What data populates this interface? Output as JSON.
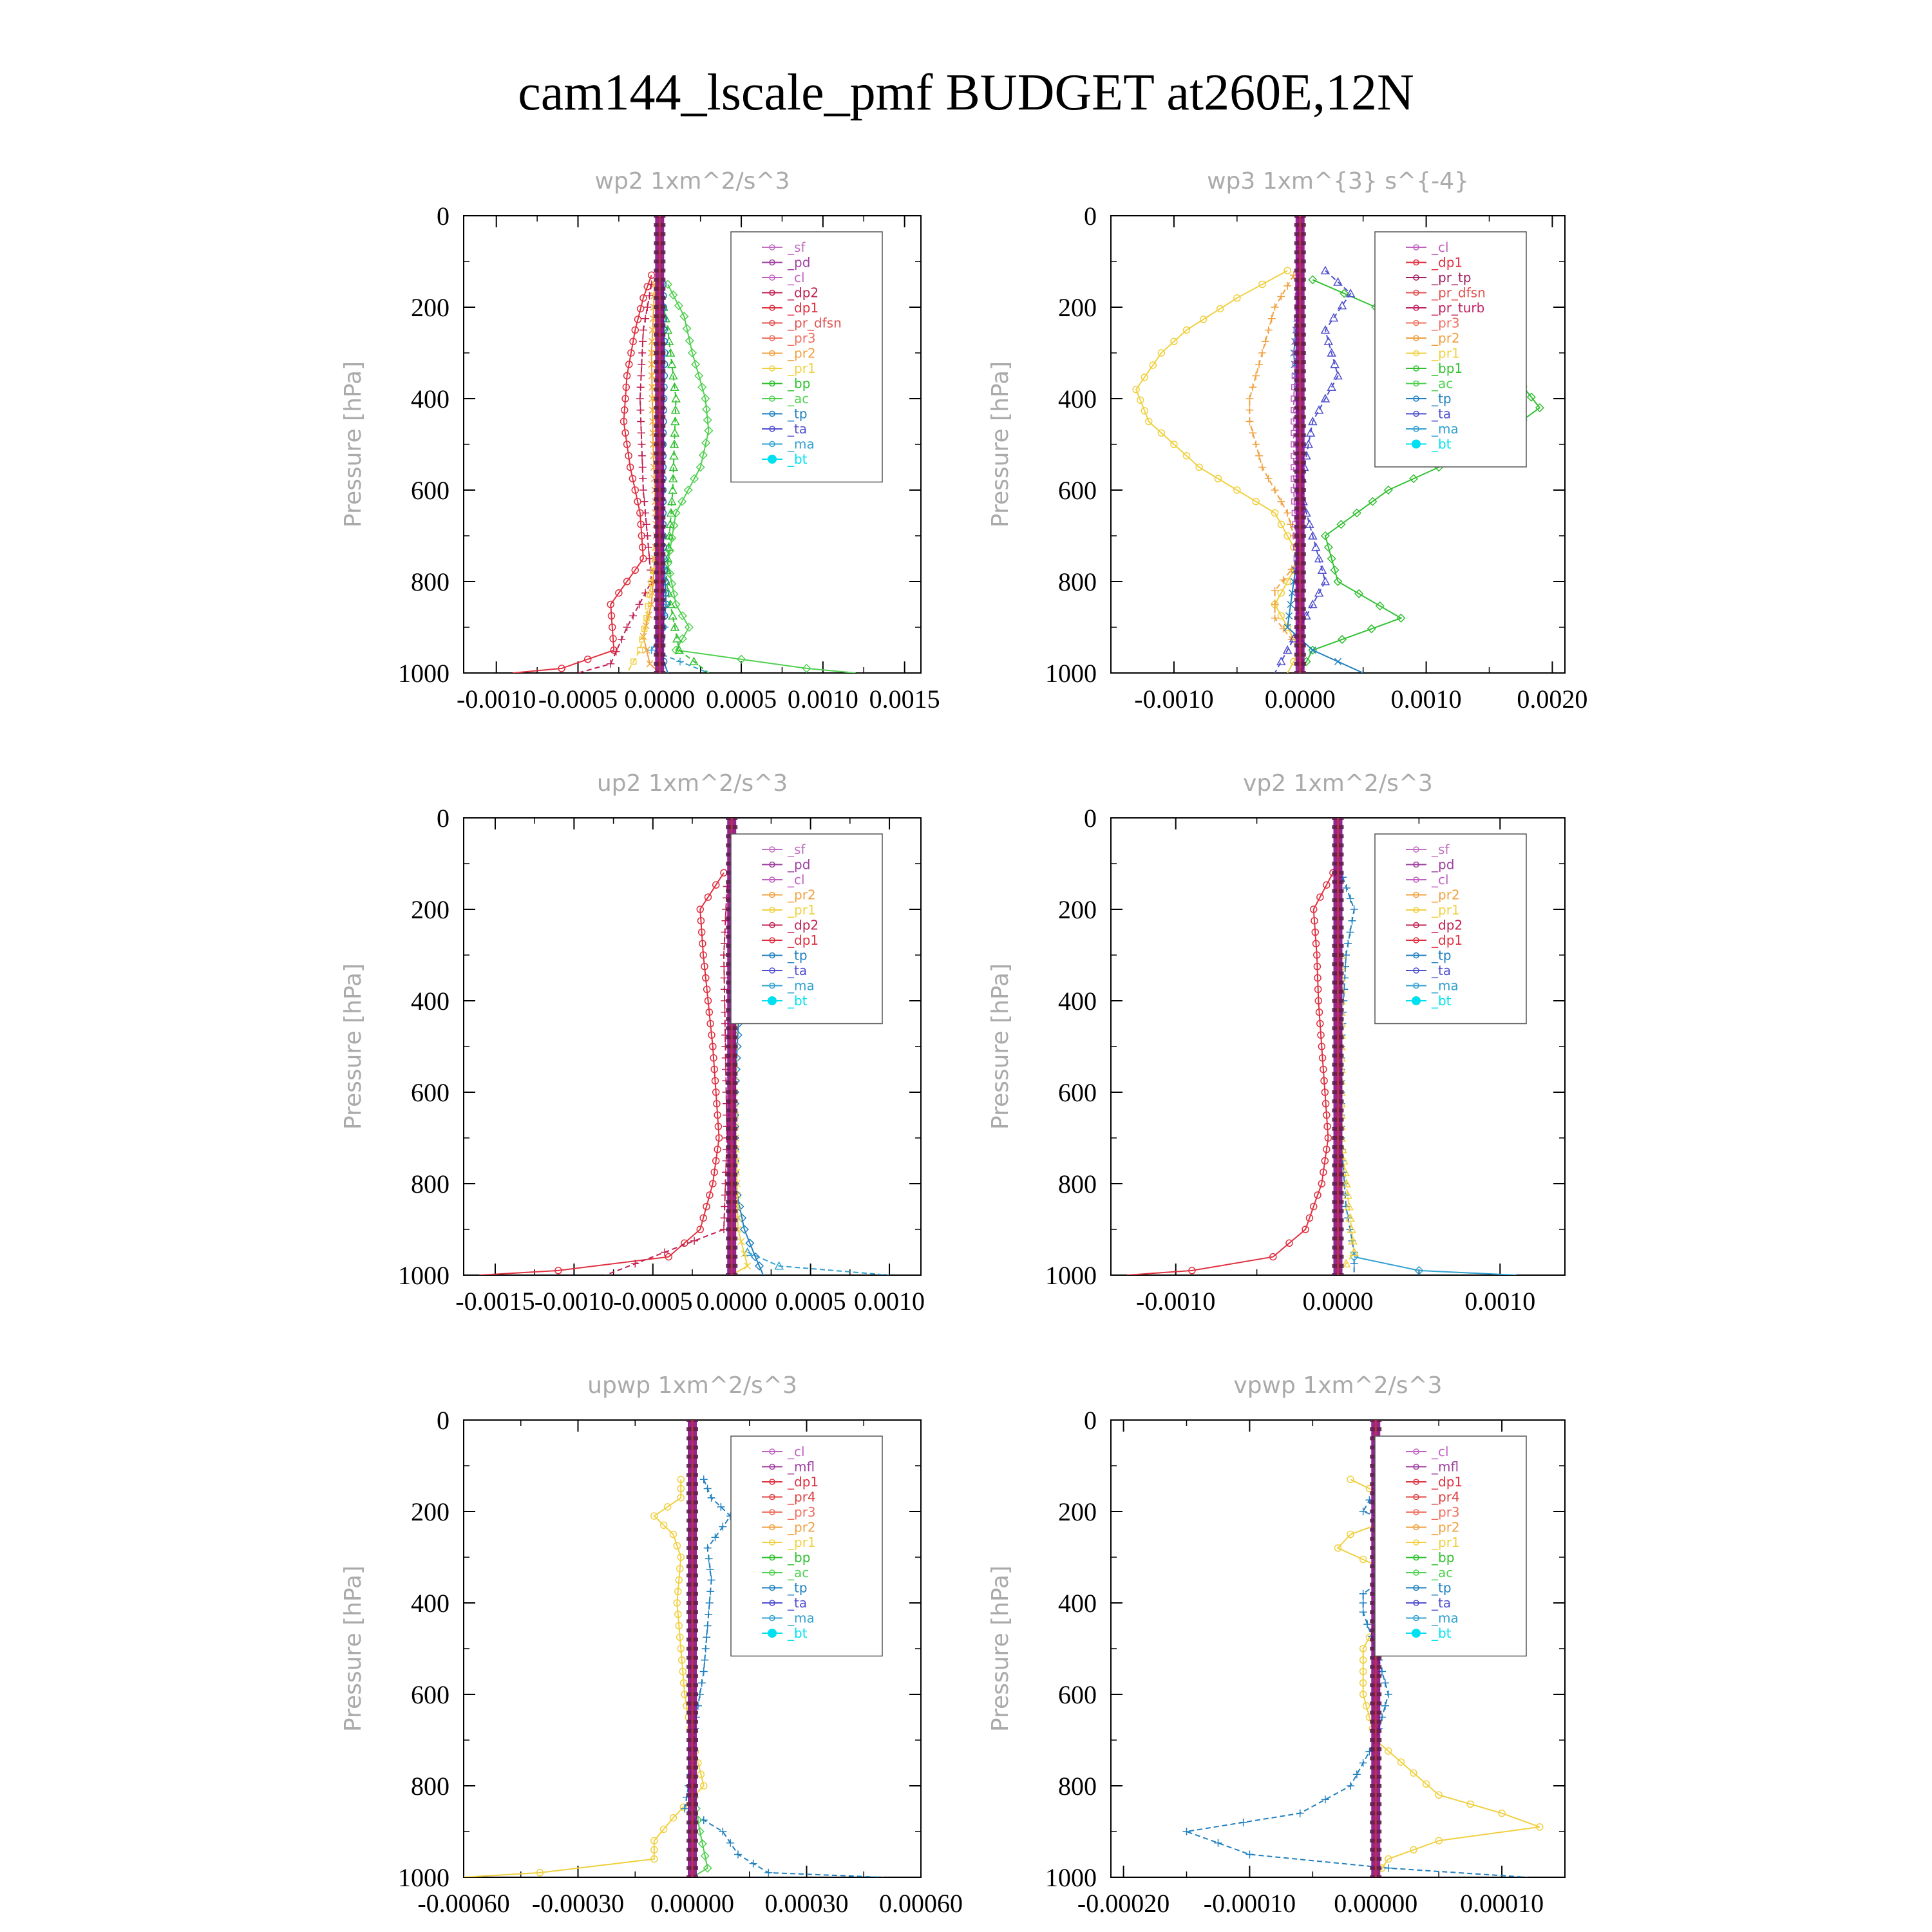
{
  "page": {
    "title": "cam144_lscale_pmf  BUDGET at260E,12N"
  },
  "colors": {
    "_sf": "#c070c0",
    "_pd": "#a040a0",
    "_cl": "#c060c0",
    "_dp2": "#c02050",
    "_dp1": "#e03040",
    "_pr_dfsn": "#e05050",
    "_pr_tp": "#a02060",
    "_pr_turb": "#c02060",
    "_pr4": "#e04040",
    "_pr3": "#f07060",
    "_pr2": "#f0a040",
    "_pr1": "#f0d040",
    "_bp": "#30c030",
    "_bp1": "#30c030",
    "_ac": "#50d050",
    "_tp": "#2080c0",
    "_ta": "#5050d0",
    "_ma": "#30a0d0",
    "_bt": "#00e0f0",
    "_mfl": "#a040a0",
    "axis": "#000000",
    "subtitle": "#aaaaaa",
    "zero_line": "#800080"
  },
  "chart_data": [
    {
      "type": "line",
      "title": "wp2   1xm^2/s^3",
      "ylabel": "Pressure [hPa]",
      "ylim": [
        1000,
        0
      ],
      "xlim": [
        -0.0012,
        0.0016
      ],
      "xticks": [
        -0.001,
        -0.0005,
        0.0,
        0.0005,
        0.001,
        0.0015
      ],
      "xtick_labels": [
        "-0.0010",
        "-0.0005",
        "0.0000",
        "0.0005",
        "0.0010",
        "0.0015"
      ],
      "yticks": [
        0,
        200,
        400,
        600,
        800,
        1000
      ],
      "ytick_labels": [
        "0",
        "200",
        "400",
        "600",
        "800",
        "1000"
      ],
      "legend": [
        "_sf",
        "_pd",
        "_cl",
        "_dp2",
        "_dp1",
        "_pr_dfsn",
        "_pr3",
        "_pr2",
        "_pr1",
        "_bp",
        "_ac",
        "_tp",
        "_ta",
        "_ma",
        "_bt"
      ],
      "series": [
        {
          "key": "_dp1",
          "y": [
            130,
            180,
            250,
            350,
            450,
            550,
            650,
            750,
            850,
            950,
            990,
            1000
          ],
          "x": [
            -5e-05,
            -0.0001,
            -0.00015,
            -0.0002,
            -0.00022,
            -0.00018,
            -0.00012,
            -0.0001,
            -0.0003,
            -0.00028,
            -0.0006,
            -0.0009
          ]
        },
        {
          "key": "_dp2",
          "y": [
            150,
            250,
            400,
            600,
            800,
            900,
            980,
            1000
          ],
          "x": [
            -5e-05,
            -0.0001,
            -0.00012,
            -0.0001,
            -5e-05,
            -0.0002,
            -0.0003,
            -0.0005
          ]
        },
        {
          "key": "_ac",
          "y": [
            150,
            220,
            300,
            400,
            470,
            550,
            650,
            760,
            850,
            900,
            950,
            990,
            1000
          ],
          "x": [
            5e-05,
            0.00015,
            0.0002,
            0.00028,
            0.0003,
            0.00025,
            0.0001,
            5e-05,
            0.0001,
            0.00018,
            0.0001,
            0.0009,
            0.0012
          ]
        },
        {
          "key": "_bp",
          "y": [
            150,
            250,
            400,
            600,
            800,
            950,
            1000
          ],
          "x": [
            0.0,
            5e-05,
            0.0001,
            8e-05,
            4e-05,
            0.00012,
            0.0003
          ]
        },
        {
          "key": "_pr2",
          "y": [
            150,
            300,
            500,
            700,
            850,
            920,
            980,
            1000
          ],
          "x": [
            -3e-05,
            -5e-05,
            -4e-05,
            -2e-05,
            -5e-05,
            -0.0001,
            -6e-05,
            0.0
          ]
        },
        {
          "key": "_pr1",
          "y": [
            150,
            300,
            500,
            700,
            880,
            950,
            1000
          ],
          "x": [
            -2e-05,
            -3e-05,
            -2e-05,
            -1e-05,
            -8e-05,
            -0.00012,
            -0.0002
          ]
        },
        {
          "key": "_tp",
          "y": [
            150,
            300,
            500,
            700,
            850,
            950,
            1000
          ],
          "x": [
            2e-05,
            3e-05,
            2e-05,
            2e-05,
            4e-05,
            0.0,
            5e-05
          ]
        },
        {
          "key": "_ma",
          "y": [
            800,
            900,
            950,
            1000
          ],
          "x": [
            2e-05,
            3e-05,
            -5e-05,
            0.0003
          ]
        },
        {
          "key": "_bt",
          "y": [
            0,
            1000
          ],
          "x": [
            0.0,
            0.0
          ]
        }
      ]
    },
    {
      "type": "line",
      "title": "wp3   1xm^{3} s^{-4}",
      "ylabel": "Pressure [hPa]",
      "ylim": [
        1000,
        0
      ],
      "xlim": [
        -0.0015,
        0.0021
      ],
      "xticks": [
        -0.001,
        0.0,
        0.001,
        0.002
      ],
      "xtick_labels": [
        "-0.0010",
        "0.0000",
        "0.0010",
        "0.0020"
      ],
      "yticks": [
        0,
        200,
        400,
        600,
        800,
        1000
      ],
      "ytick_labels": [
        "0",
        "200",
        "400",
        "600",
        "800",
        "1000"
      ],
      "legend": [
        "_cl",
        "_dp1",
        "_pr_tp",
        "_pr_dfsn",
        "_pr_turb",
        "_pr3",
        "_pr2",
        "_pr1",
        "_bp1",
        "_ac",
        "_tp",
        "_ta",
        "_ma",
        "_bt"
      ],
      "series": [
        {
          "key": "_pr1",
          "y": [
            120,
            180,
            250,
            300,
            380,
            450,
            550,
            650,
            750,
            850,
            900,
            950,
            1000
          ],
          "x": [
            -0.0001,
            -0.0005,
            -0.0009,
            -0.0011,
            -0.0013,
            -0.0012,
            -0.0008,
            -0.0002,
            0.0,
            -0.0002,
            -0.0001,
            0.0,
            -0.0001
          ]
        },
        {
          "key": "_pr2",
          "y": [
            130,
            200,
            300,
            400,
            450,
            550,
            650,
            750,
            820,
            880,
            950,
            1000
          ],
          "x": [
            -5e-05,
            -0.0002,
            -0.0003,
            -0.0004,
            -0.0004,
            -0.0003,
            -0.0001,
            0.0,
            -0.0002,
            -0.0002,
            0.0,
            0.0
          ]
        },
        {
          "key": "_bp1",
          "y": [
            140,
            200,
            260,
            350,
            420,
            500,
            600,
            700,
            800,
            880,
            950,
            1000
          ],
          "x": [
            0.0001,
            0.0006,
            0.0012,
            0.0017,
            0.0019,
            0.0015,
            0.0007,
            0.0002,
            0.0003,
            0.0008,
            0.0001,
            0.0
          ]
        },
        {
          "key": "_ta",
          "y": [
            120,
            170,
            250,
            350,
            450,
            600,
            800,
            900,
            1000
          ],
          "x": [
            0.0002,
            0.0004,
            0.0002,
            0.0003,
            0.0001,
            0.0,
            0.0002,
            0.0,
            -0.0002
          ]
        },
        {
          "key": "_tp",
          "y": [
            150,
            300,
            500,
            700,
            900,
            950,
            1000
          ],
          "x": [
            0.0,
            -5e-05,
            0.0,
            0.0,
            -0.0001,
            0.0001,
            0.0005
          ]
        },
        {
          "key": "_cl",
          "y": [
            0,
            200,
            400,
            600,
            800,
            1000
          ],
          "x": [
            0.0,
            -2e-05,
            -5e-05,
            -5e-05,
            -2e-05,
            0.0
          ]
        },
        {
          "key": "_bt",
          "y": [
            0,
            1000
          ],
          "x": [
            0.0,
            0.0
          ]
        }
      ]
    },
    {
      "type": "line",
      "title": "up2   1xm^2/s^3",
      "ylabel": "Pressure [hPa]",
      "ylim": [
        1000,
        0
      ],
      "xlim": [
        -0.0017,
        0.0012
      ],
      "xticks": [
        -0.0015,
        -0.001,
        -0.0005,
        0.0,
        0.0005,
        0.001
      ],
      "xtick_labels": [
        "-0.0015",
        "-0.0010",
        "-0.0005",
        "0.0000",
        "0.0005",
        "0.0010"
      ],
      "yticks": [
        0,
        200,
        400,
        600,
        800,
        1000
      ],
      "ytick_labels": [
        "0",
        "200",
        "400",
        "600",
        "800",
        "1000"
      ],
      "legend": [
        "_sf",
        "_pd",
        "_cl",
        "_pr2",
        "_pr1",
        "_dp2",
        "_dp1",
        "_tp",
        "_ta",
        "_ma",
        "_bt"
      ],
      "series": [
        {
          "key": "_dp1",
          "y": [
            120,
            200,
            300,
            400,
            500,
            600,
            700,
            800,
            900,
            960,
            990,
            1000
          ],
          "x": [
            -5e-05,
            -0.0002,
            -0.00018,
            -0.00015,
            -0.00012,
            -0.0001,
            -8e-05,
            -0.00012,
            -0.0002,
            -0.0004,
            -0.0011,
            -0.0016
          ]
        },
        {
          "key": "_dp2",
          "y": [
            150,
            300,
            500,
            700,
            900,
            1000
          ],
          "x": [
            -3e-05,
            -5e-05,
            -4e-05,
            -3e-05,
            -5e-05,
            -0.0008
          ]
        },
        {
          "key": "_tp",
          "y": [
            130,
            200,
            250,
            400,
            600,
            800,
            900,
            960,
            1000
          ],
          "x": [
            5e-05,
            0.00015,
            0.0001,
            5e-05,
            2e-05,
            2e-05,
            8e-05,
            0.00015,
            0.0002
          ]
        },
        {
          "key": "_ma",
          "y": [
            950,
            980,
            1000
          ],
          "x": [
            0.0001,
            0.0003,
            0.001
          ]
        },
        {
          "key": "_pr1",
          "y": [
            300,
            600,
            900,
            980,
            1000
          ],
          "x": [
            2e-05,
            2e-05,
            4e-05,
            0.0001,
            0.0
          ]
        },
        {
          "key": "_bt",
          "y": [
            0,
            1000
          ],
          "x": [
            0.0,
            0.0
          ]
        }
      ]
    },
    {
      "type": "line",
      "title": "vp2   1xm^2/s^3",
      "ylabel": "Pressure [hPa]",
      "ylim": [
        1000,
        0
      ],
      "xlim": [
        -0.0014,
        0.0014
      ],
      "xticks": [
        -0.001,
        0.0,
        0.001
      ],
      "xtick_labels": [
        "-0.0010",
        "0.0000",
        "0.0010"
      ],
      "yticks": [
        0,
        200,
        400,
        600,
        800,
        1000
      ],
      "ytick_labels": [
        "0",
        "200",
        "400",
        "600",
        "800",
        "1000"
      ],
      "legend": [
        "_sf",
        "_pd",
        "_cl",
        "_pr2",
        "_pr1",
        "_dp2",
        "_dp1",
        "_tp",
        "_ta",
        "_ma",
        "_bt"
      ],
      "series": [
        {
          "key": "_dp1",
          "y": [
            120,
            200,
            300,
            400,
            500,
            600,
            700,
            800,
            900,
            960,
            990,
            1000
          ],
          "x": [
            -3e-05,
            -0.00015,
            -0.00013,
            -0.00012,
            -0.0001,
            -8e-05,
            -6e-05,
            -0.0001,
            -0.0002,
            -0.0004,
            -0.0009,
            -0.0013
          ]
        },
        {
          "key": "_tp",
          "y": [
            130,
            200,
            300,
            500,
            700,
            850,
            950,
            1000
          ],
          "x": [
            3e-05,
            0.0001,
            5e-05,
            2e-05,
            2e-05,
            5e-05,
            0.0001,
            0.0001
          ]
        },
        {
          "key": "_ma",
          "y": [
            960,
            990,
            1000
          ],
          "x": [
            0.0001,
            0.0005,
            0.0011
          ]
        },
        {
          "key": "_pr1",
          "y": [
            300,
            700,
            950,
            1000
          ],
          "x": [
            2e-05,
            2e-05,
            0.0001,
            0.0
          ]
        },
        {
          "key": "_bt",
          "y": [
            0,
            1000
          ],
          "x": [
            0.0,
            0.0
          ]
        }
      ]
    },
    {
      "type": "line",
      "title": "upwp   1xm^2/s^3",
      "ylabel": "Pressure [hPa]",
      "ylim": [
        1000,
        0
      ],
      "xlim": [
        -0.0006,
        0.0006
      ],
      "xticks": [
        -0.0006,
        -0.0003,
        0.0,
        0.0003,
        0.0006
      ],
      "xtick_labels": [
        "-0.00060",
        "-0.00030",
        "0.00000",
        "0.00030",
        "0.00060"
      ],
      "yticks": [
        0,
        200,
        400,
        600,
        800,
        1000
      ],
      "ytick_labels": [
        "0",
        "200",
        "400",
        "600",
        "800",
        "1000"
      ],
      "legend": [
        "_cl",
        "_mfl",
        "_dp1",
        "_pr4",
        "_pr3",
        "_pr2",
        "_pr1",
        "_bp",
        "_ac",
        "_tp",
        "_ta",
        "_ma",
        "_bt"
      ],
      "series": [
        {
          "key": "_pr1",
          "y": [
            130,
            170,
            210,
            250,
            300,
            400,
            500,
            600,
            700,
            800,
            870,
            920,
            960,
            990,
            1000
          ],
          "x": [
            -3e-05,
            -3e-05,
            -0.0001,
            -5e-05,
            -3e-05,
            -4e-05,
            -3e-05,
            -2e-05,
            0.0,
            3e-05,
            -5e-05,
            -0.0001,
            -0.0001,
            -0.0004,
            -0.0006
          ]
        },
        {
          "key": "_tp",
          "y": [
            130,
            170,
            210,
            280,
            350,
            450,
            550,
            650,
            750,
            850,
            900,
            950,
            990,
            1000
          ],
          "x": [
            3e-05,
            5e-05,
            0.0001,
            4e-05,
            5e-05,
            4e-05,
            3e-05,
            1e-05,
            0.0,
            -2e-05,
            8e-05,
            0.00012,
            0.0002,
            0.0005
          ]
        },
        {
          "key": "_ac",
          "y": [
            800,
            900,
            980,
            1000
          ],
          "x": [
            0.0,
            2e-05,
            4e-05,
            0.0
          ]
        },
        {
          "key": "_bt",
          "y": [
            0,
            1000
          ],
          "x": [
            0.0,
            0.0
          ]
        }
      ]
    },
    {
      "type": "line",
      "title": "vpwp   1xm^2/s^3",
      "ylabel": "Pressure [hPa]",
      "ylim": [
        1000,
        0
      ],
      "xlim": [
        -0.00021,
        0.00015
      ],
      "xticks": [
        -0.0002,
        -0.0001,
        0.0,
        0.0001
      ],
      "xtick_labels": [
        "-0.00020",
        "-0.00010",
        "0.00000",
        "0.00010"
      ],
      "yticks": [
        0,
        200,
        400,
        600,
        800,
        1000
      ],
      "ytick_labels": [
        "0",
        "200",
        "400",
        "600",
        "800",
        "1000"
      ],
      "legend": [
        "_cl",
        "_mfl",
        "_dp1",
        "_pr4",
        "_pr3",
        "_pr2",
        "_pr1",
        "_bp",
        "_ac",
        "_tp",
        "_ta",
        "_ma",
        "_bt"
      ],
      "series": [
        {
          "key": "_pr1",
          "y": [
            130,
            170,
            210,
            250,
            280,
            330,
            380,
            450,
            500,
            600,
            700,
            820,
            860,
            890,
            920,
            960,
            1000
          ],
          "x": [
            -2e-05,
            1e-05,
            2e-05,
            -2e-05,
            -3e-05,
            1e-05,
            2e-05,
            0.0,
            -1e-05,
            -1e-05,
            0.0,
            5e-05,
            0.0001,
            0.00013,
            5e-05,
            1e-05,
            0.0
          ]
        },
        {
          "key": "_tp",
          "y": [
            130,
            150,
            200,
            230,
            270,
            320,
            380,
            420,
            500,
            600,
            700,
            800,
            860,
            900,
            950,
            980,
            1000
          ],
          "x": [
            3e-05,
            0.0,
            -1e-05,
            2e-05,
            4e-05,
            2e-05,
            -1e-05,
            -1e-05,
            0.0,
            1e-05,
            0.0,
            -2e-05,
            -6e-05,
            -0.00015,
            -0.0001,
            1e-05,
            0.00012
          ]
        },
        {
          "key": "_bt",
          "y": [
            0,
            1000
          ],
          "x": [
            0.0,
            0.0
          ]
        }
      ]
    }
  ]
}
